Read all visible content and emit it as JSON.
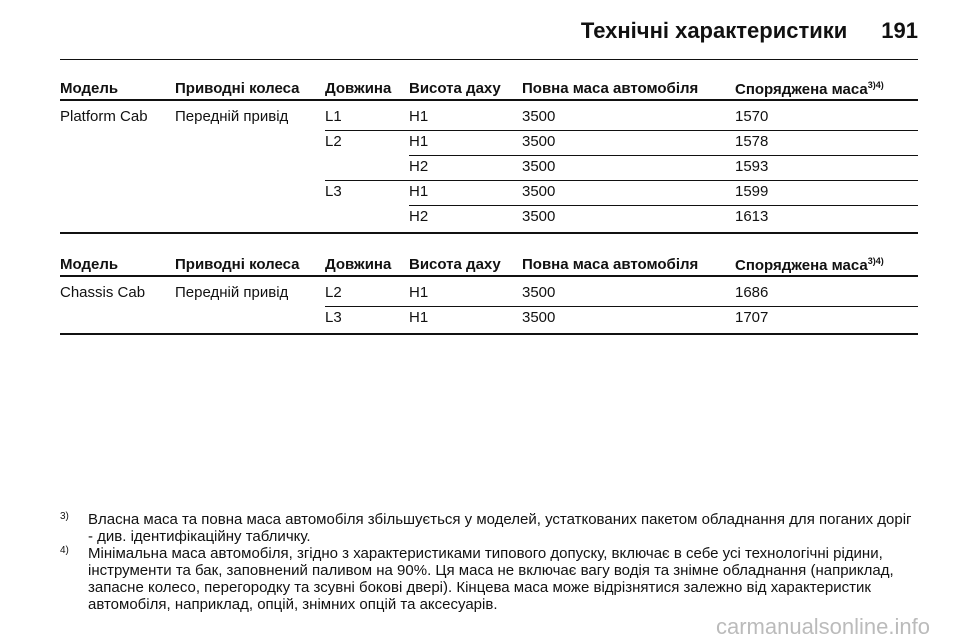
{
  "header": {
    "title": "Технічні характеристики",
    "page": "191"
  },
  "tables": [
    {
      "columns": [
        "Модель",
        "Приводні колеса",
        "Довжина",
        "Висота даху",
        "Повна маса автомобіля",
        "Споряджена маса"
      ],
      "columns_note": "3)4)",
      "rows": [
        [
          "Platform Cab",
          "Передній привід",
          "L1",
          "H1",
          "3500",
          "1570"
        ],
        [
          null,
          null,
          "L2",
          "H1",
          "3500",
          "1578"
        ],
        [
          null,
          null,
          null,
          "H2",
          "3500",
          "1593"
        ],
        [
          null,
          null,
          "L3",
          "H1",
          "3500",
          "1599"
        ],
        [
          null,
          null,
          null,
          "H2",
          "3500",
          "1613"
        ]
      ]
    },
    {
      "columns": [
        "Модель",
        "Приводні колеса",
        "Довжина",
        "Висота даху",
        "Повна маса автомобіля",
        "Споряджена маса"
      ],
      "columns_note": "3)4)",
      "rows": [
        [
          "Chassis Cab",
          "Передній привід",
          "L2",
          "H1",
          "3500",
          "1686"
        ],
        [
          null,
          null,
          "L3",
          "H1",
          "3500",
          "1707"
        ]
      ]
    }
  ],
  "footnotes": [
    {
      "marker": "3)",
      "text": "Власна маса та повна маса автомобіля збільшується у моделей, устаткованих пакетом обладнання для поганих доріг - див. ідентифікаційну табличку."
    },
    {
      "marker": "4)",
      "text": "Мінімальна маса автомобіля, згідно з характеристиками типового допуску, включає в себе усі технологічні рідини, інструменти та бак, заповнений паливом на 90%. Ця маса не включає вагу водія та знімне обладнання (наприклад, запасне колесо, перегородку та зсувні бокові двері). Кінцева маса може відрізнятися залежно від характеристик автомобіля, наприклад, опцій, знімних опцій та аксесуарів."
    }
  ],
  "watermark": "carmanualsonline.info"
}
